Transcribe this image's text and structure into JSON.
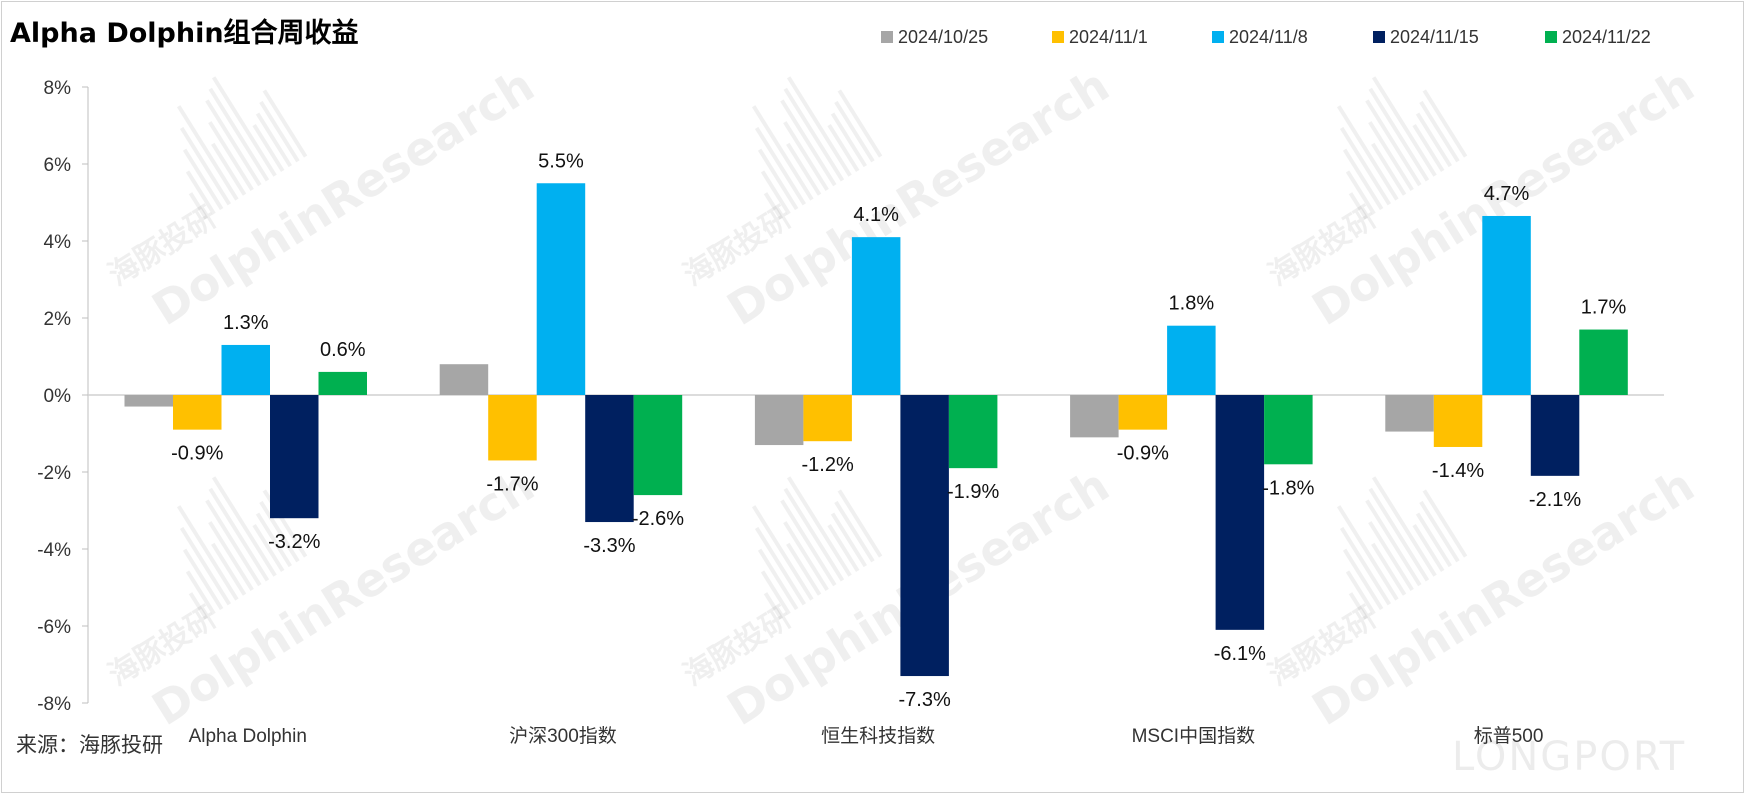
{
  "chart_data": {
    "type": "bar",
    "title": "Alpha Dolphin组合周收益",
    "categories": [
      "Alpha Dolphin",
      "沪深300指数",
      "恒生科技指数",
      "MSCI中国指数",
      "标普500"
    ],
    "series": [
      {
        "name": "2024/10/25",
        "color": "#a6a6a6",
        "values": [
          -0.3,
          0.8,
          -1.3,
          -1.1,
          -0.95
        ],
        "labels": [
          "",
          "",
          "",
          "",
          ""
        ]
      },
      {
        "name": "2024/11/1",
        "color": "#ffc000",
        "values": [
          -0.9,
          -1.7,
          -1.2,
          -0.9,
          -1.35
        ],
        "labels": [
          "-0.9%",
          "-1.7%",
          "-1.2%",
          "-0.9%",
          "-1.4%"
        ]
      },
      {
        "name": "2024/11/8",
        "color": "#00b0f0",
        "values": [
          1.3,
          5.5,
          4.1,
          1.8,
          4.65
        ],
        "labels": [
          "1.3%",
          "5.5%",
          "4.1%",
          "1.8%",
          "4.7%"
        ]
      },
      {
        "name": "2024/11/15",
        "color": "#002060",
        "values": [
          -3.2,
          -3.3,
          -7.3,
          -6.1,
          -2.1
        ],
        "labels": [
          "-3.2%",
          "-3.3%",
          "-7.3%",
          "-6.1%",
          "-2.1%"
        ]
      },
      {
        "name": "2024/11/22",
        "color": "#00b050",
        "values": [
          0.6,
          -2.6,
          -1.9,
          -1.8,
          1.7
        ],
        "labels": [
          "0.6%",
          "-2.6%",
          "-1.9%",
          "-1.8%",
          "1.7%"
        ]
      }
    ],
    "ylim": [
      -8,
      8
    ],
    "yticks": [
      "8%",
      "6%",
      "4%",
      "2%",
      "0%",
      "-2%",
      "-4%",
      "-6%",
      "-8%"
    ],
    "legend_position": "top-right",
    "grid": false
  },
  "source": "来源：海豚投研",
  "watermark": {
    "brand": "LONGPORT",
    "text_cn": "海豚投研",
    "text_en": "DolphinResearch"
  }
}
